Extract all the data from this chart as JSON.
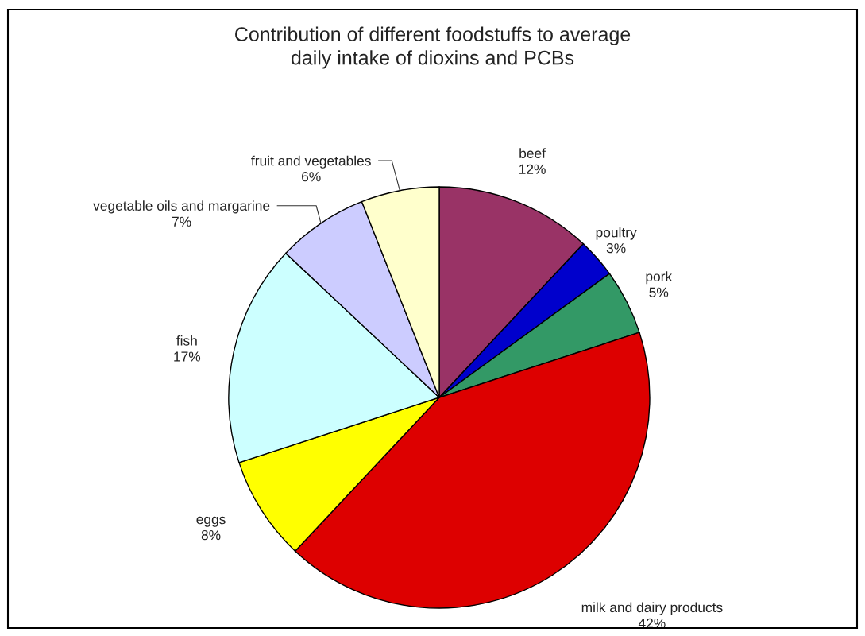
{
  "chart_data": {
    "type": "pie",
    "title": "Contribution of different foodstuffs to average\ndaily intake of dioxins and PCBs",
    "categories": [
      "beef",
      "poultry",
      "pork",
      "milk and dairy products",
      "eggs",
      "fish",
      "vegetable oils and margarine",
      "fruit and vegetables"
    ],
    "values": [
      12,
      3,
      5,
      42,
      8,
      17,
      7,
      6
    ],
    "value_labels": [
      "12%",
      "3%",
      "5%",
      "42%",
      "8%",
      "17%",
      "7%",
      "6%"
    ],
    "colors": [
      "#993366",
      "#0000cc",
      "#339966",
      "#dd0000",
      "#ffff00",
      "#ccffff",
      "#ccccff",
      "#ffffcc"
    ]
  }
}
